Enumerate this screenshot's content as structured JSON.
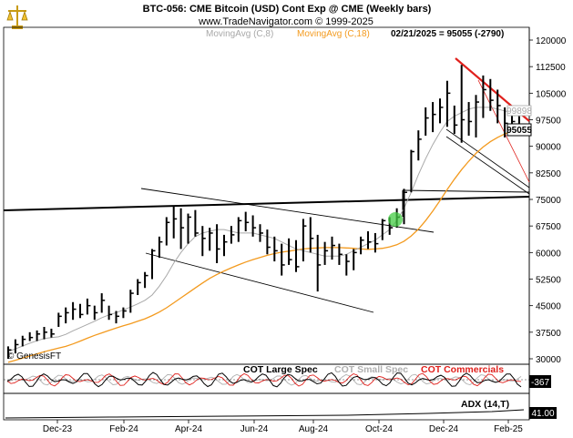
{
  "header": {
    "title": "BTC-056:  CME Bitcoin (USD) Cont Exp @ CME  (Weekly bars)",
    "copyright": "www.TradeNavigator.com © 1999-2025",
    "ma8_label": "MovingAvg (C,8)",
    "ma18_label": "MovingAvg (C,18)",
    "quote": "02/21/2025 = 95055 (-2790)"
  },
  "colors": {
    "bars": "#000000",
    "ma8": "#a8a8a8",
    "ma18": "#f39a1e",
    "trend_red": "#e0201c",
    "cot_large": "#000000",
    "cot_small": "#b0b0b0",
    "cot_commercials": "#e0201c",
    "signal_green": "#44cc44",
    "dot_green": "#22aa22"
  },
  "watermark": "© GenesisFT",
  "price_boxes": {
    "upper": "99898",
    "current": "95055"
  },
  "cot_panel": {
    "large_label": "COT Large Spec",
    "small_label": "COT Small Spec",
    "commercials_label": "COT Commercials",
    "value_box": "-367"
  },
  "adx_panel": {
    "label": "ADX (14,T)",
    "value_box": "41.00"
  },
  "chart_data": {
    "type": "ohlc",
    "title": "BTC-056:  CME Bitcoin (USD) Cont Exp @ CME  (Weekly bars)",
    "xlabel": "",
    "ylabel": "",
    "x_ticks": [
      "Dec-23",
      "Feb-24",
      "Apr-24",
      "Jun-24",
      "Aug-24",
      "Oct-24",
      "Dec-24",
      "Feb-25"
    ],
    "y_ticks": [
      30000,
      37500,
      45000,
      52500,
      60000,
      67500,
      75000,
      82500,
      90000,
      97500,
      105000,
      112500,
      120000
    ],
    "ylim": [
      28000,
      124000
    ],
    "series": [
      {
        "name": "Weekly bars",
        "bars": [
          {
            "h": 33500,
            "l": 30000,
            "c": 32500
          },
          {
            "h": 35500,
            "l": 31500,
            "c": 34000
          },
          {
            "h": 36500,
            "l": 33500,
            "c": 35500
          },
          {
            "h": 37500,
            "l": 35000,
            "c": 36000
          },
          {
            "h": 38000,
            "l": 35000,
            "c": 37000
          },
          {
            "h": 39000,
            "l": 35500,
            "c": 37500
          },
          {
            "h": 38500,
            "l": 36000,
            "c": 37000
          },
          {
            "h": 43000,
            "l": 39000,
            "c": 42000
          },
          {
            "h": 44500,
            "l": 40000,
            "c": 43000
          },
          {
            "h": 46000,
            "l": 41000,
            "c": 44000
          },
          {
            "h": 45500,
            "l": 41500,
            "c": 42500
          },
          {
            "h": 47000,
            "l": 42500,
            "c": 45000
          },
          {
            "h": 45000,
            "l": 41000,
            "c": 43000
          },
          {
            "h": 48500,
            "l": 43000,
            "c": 46500
          },
          {
            "h": 45000,
            "l": 41000,
            "c": 42500
          },
          {
            "h": 43500,
            "l": 40000,
            "c": 42000
          },
          {
            "h": 44500,
            "l": 41500,
            "c": 43500
          },
          {
            "h": 49500,
            "l": 43000,
            "c": 48500
          },
          {
            "h": 52500,
            "l": 48000,
            "c": 51500
          },
          {
            "h": 54500,
            "l": 50000,
            "c": 53500
          },
          {
            "h": 61000,
            "l": 52500,
            "c": 60500
          },
          {
            "h": 64500,
            "l": 58500,
            "c": 63000
          },
          {
            "h": 70000,
            "l": 62000,
            "c": 68500
          },
          {
            "h": 73000,
            "l": 64000,
            "c": 69500
          },
          {
            "h": 72500,
            "l": 61000,
            "c": 67000
          },
          {
            "h": 71000,
            "l": 62500,
            "c": 70000
          },
          {
            "h": 72000,
            "l": 64500,
            "c": 65500
          },
          {
            "h": 67500,
            "l": 59000,
            "c": 64000
          },
          {
            "h": 67000,
            "l": 60500,
            "c": 65500
          },
          {
            "h": 68000,
            "l": 57000,
            "c": 61000
          },
          {
            "h": 65000,
            "l": 59000,
            "c": 63000
          },
          {
            "h": 67500,
            "l": 62500,
            "c": 65000
          },
          {
            "h": 70000,
            "l": 63000,
            "c": 69000
          },
          {
            "h": 71500,
            "l": 66000,
            "c": 68500
          },
          {
            "h": 70500,
            "l": 64500,
            "c": 67000
          },
          {
            "h": 68000,
            "l": 63000,
            "c": 65500
          },
          {
            "h": 66500,
            "l": 59500,
            "c": 61500
          },
          {
            "h": 64500,
            "l": 57500,
            "c": 60500
          },
          {
            "h": 62500,
            "l": 53500,
            "c": 56500
          },
          {
            "h": 64000,
            "l": 56500,
            "c": 58000
          },
          {
            "h": 63500,
            "l": 54500,
            "c": 56000
          },
          {
            "h": 69500,
            "l": 57500,
            "c": 67500
          },
          {
            "h": 70000,
            "l": 60000,
            "c": 64000
          },
          {
            "h": 65000,
            "l": 49000,
            "c": 56500
          },
          {
            "h": 63000,
            "l": 56500,
            "c": 60500
          },
          {
            "h": 64500,
            "l": 58000,
            "c": 62000
          },
          {
            "h": 62500,
            "l": 56500,
            "c": 59500
          },
          {
            "h": 59500,
            "l": 53500,
            "c": 57500
          },
          {
            "h": 61000,
            "l": 55000,
            "c": 60000
          },
          {
            "h": 64500,
            "l": 59500,
            "c": 63500
          },
          {
            "h": 66000,
            "l": 61000,
            "c": 63000
          },
          {
            "h": 65500,
            "l": 60000,
            "c": 62500
          },
          {
            "h": 69500,
            "l": 63500,
            "c": 69000
          },
          {
            "h": 70000,
            "l": 65000,
            "c": 67000
          },
          {
            "h": 72500,
            "l": 67000,
            "c": 70000
          },
          {
            "h": 78000,
            "l": 68000,
            "c": 77000
          },
          {
            "h": 89000,
            "l": 77000,
            "c": 88500
          },
          {
            "h": 94500,
            "l": 86000,
            "c": 92000
          },
          {
            "h": 101000,
            "l": 93000,
            "c": 98000
          },
          {
            "h": 102500,
            "l": 94000,
            "c": 99000
          },
          {
            "h": 103500,
            "l": 96500,
            "c": 101000
          },
          {
            "h": 108500,
            "l": 95500,
            "c": 105000
          },
          {
            "h": 101500,
            "l": 93500,
            "c": 96000
          },
          {
            "h": 113000,
            "l": 91000,
            "c": 97500
          },
          {
            "h": 102500,
            "l": 93000,
            "c": 97000
          },
          {
            "h": 104500,
            "l": 92500,
            "c": 102500
          },
          {
            "h": 110000,
            "l": 98000,
            "c": 106000
          },
          {
            "h": 109000,
            "l": 100000,
            "c": 103000
          },
          {
            "h": 106000,
            "l": 96500,
            "c": 101500
          },
          {
            "h": 101000,
            "l": 92500,
            "c": 96500
          },
          {
            "h": 99000,
            "l": 93000,
            "c": 97000
          },
          {
            "h": 98500,
            "l": 93000,
            "c": 95055
          }
        ]
      },
      {
        "name": "MovingAvg (C,8)",
        "values": [
          32000,
          32800,
          33600,
          34400,
          35100,
          35700,
          36000,
          36200,
          36900,
          37900,
          38800,
          39700,
          40600,
          41600,
          42400,
          43000,
          43800,
          44600,
          45500,
          46500,
          48000,
          50500,
          53500,
          57000,
          60000,
          62500,
          64500,
          65500,
          66000,
          66500,
          66500,
          66000,
          65500,
          65500,
          65500,
          65000,
          64500,
          64000,
          63000,
          62000,
          61000,
          60500,
          60000,
          59500,
          59000,
          59000,
          59000,
          59500,
          60500,
          61500,
          62500,
          63500,
          65000,
          66500,
          69000,
          72500,
          77000,
          82000,
          86500,
          90500,
          94000,
          97000,
          98500,
          99500,
          100500,
          101000,
          101000,
          101000,
          100500,
          100000,
          99500,
          98500
        ]
      },
      {
        "name": "MovingAvg (C,18)",
        "values": [
          29000,
          29600,
          30200,
          30800,
          31400,
          32000,
          32500,
          33000,
          33500,
          34200,
          35000,
          35800,
          36600,
          37300,
          38000,
          38700,
          39300,
          39900,
          40600,
          41300,
          42200,
          43200,
          44400,
          45800,
          47200,
          48600,
          50000,
          51400,
          52700,
          53800,
          54800,
          55700,
          56500,
          57300,
          58000,
          58600,
          59200,
          59700,
          60100,
          60400,
          60700,
          61000,
          61200,
          61300,
          61400,
          61400,
          61400,
          61300,
          61200,
          61000,
          60900,
          61000,
          61200,
          61600,
          62200,
          63200,
          64700,
          66600,
          69000,
          71700,
          74700,
          77800,
          80700,
          83400,
          85800,
          88000,
          89800,
          91300,
          92500,
          93500,
          94300,
          95000
        ]
      }
    ],
    "annotations": [
      "99898",
      "95055"
    ]
  }
}
